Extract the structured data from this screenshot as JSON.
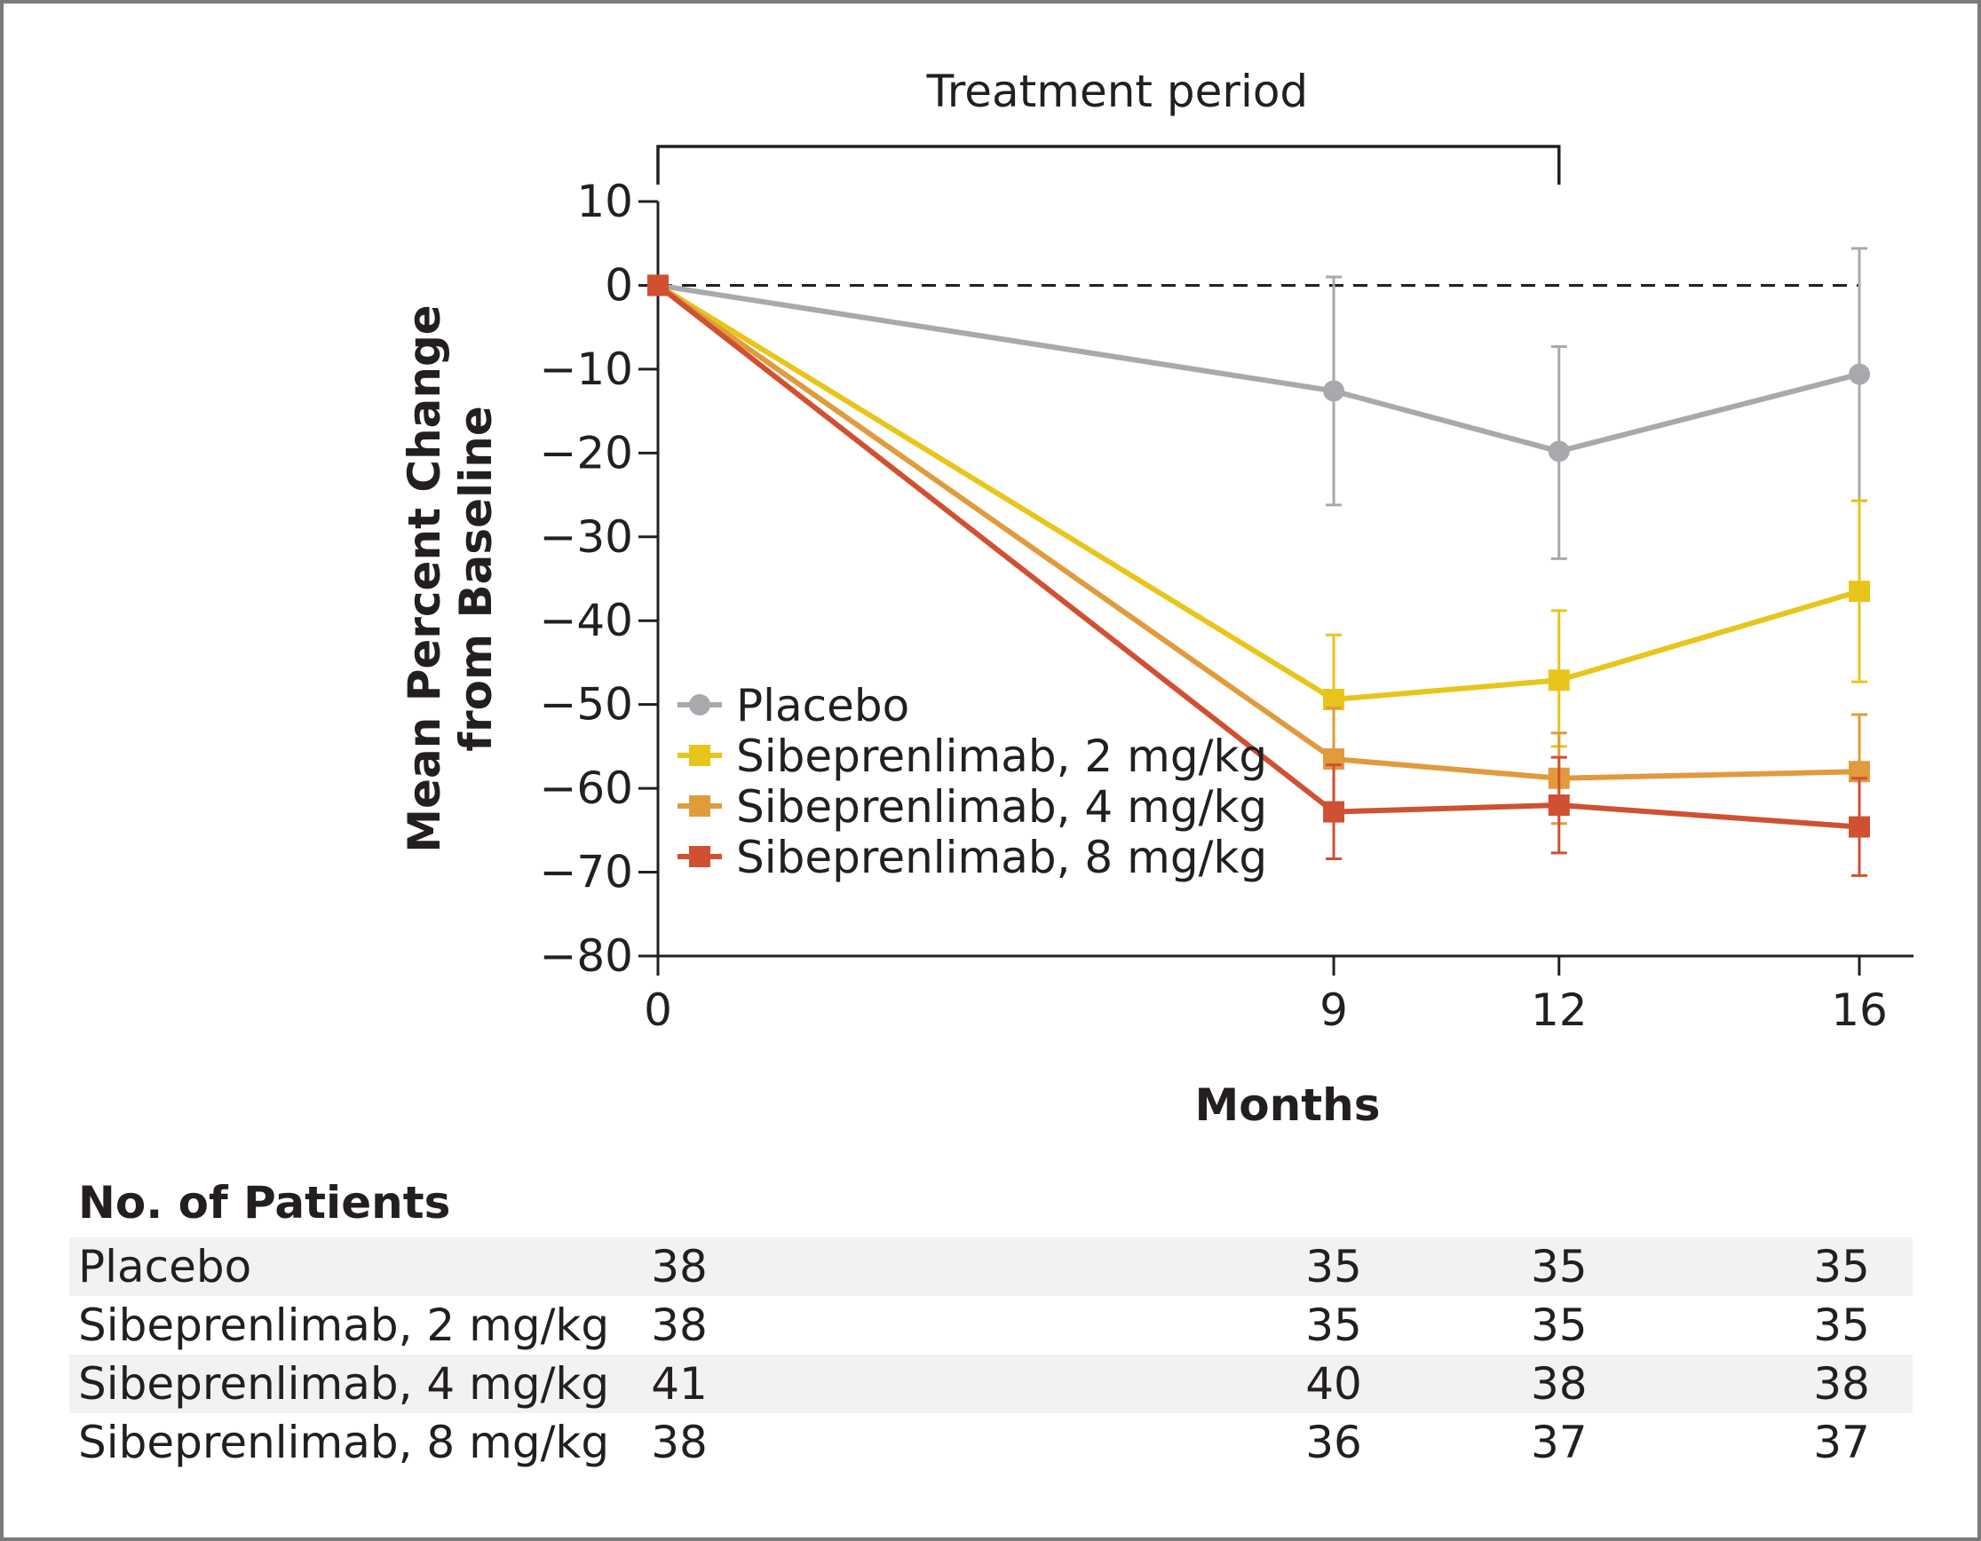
{
  "chart_data": {
    "type": "line",
    "xlabel": "Months",
    "ylabel_lines": [
      "Mean Percent Change",
      "from Baseline"
    ],
    "x": [
      0,
      9,
      12,
      16
    ],
    "x_tick_labels": [
      "0",
      "9",
      "12",
      "16"
    ],
    "ylim": [
      -80,
      10
    ],
    "y_ticks": [
      10,
      0,
      -10,
      -20,
      -30,
      -40,
      -50,
      -60,
      -70,
      -80
    ],
    "y_tick_labels": [
      "10",
      "0",
      "−10",
      "−20",
      "−30",
      "−40",
      "−50",
      "−60",
      "−70",
      "−80"
    ],
    "reference_line_y": 0,
    "bracket": {
      "label": "Treatment period",
      "from_x": 0,
      "to_x": 12
    },
    "legend_position": "lower-left",
    "series": [
      {
        "name": "Placebo",
        "color": "#a7a9ac",
        "marker": "circle",
        "values": [
          0,
          -12.6,
          -19.8,
          -10.6
        ],
        "err_low": [
          null,
          -26.2,
          -32.6,
          -25.7
        ],
        "err_high": [
          null,
          1.0,
          -7.3,
          4.4
        ]
      },
      {
        "name": "Sibeprenlimab, 2 mg/kg",
        "color": "#e8c51b",
        "marker": "square",
        "values": [
          0,
          -49.4,
          -47.1,
          -36.5
        ],
        "err_low": [
          null,
          -57.0,
          -55.0,
          -47.3
        ],
        "err_high": [
          null,
          -41.7,
          -38.8,
          -25.7
        ]
      },
      {
        "name": "Sibeprenlimab, 4 mg/kg",
        "color": "#e09b3d",
        "marker": "square",
        "values": [
          0,
          -56.5,
          -58.8,
          -58.0
        ],
        "err_low": [
          null,
          -62.6,
          -64.2,
          -64.8
        ],
        "err_high": [
          null,
          -50.4,
          -53.4,
          -51.2
        ]
      },
      {
        "name": "Sibeprenlimab, 8 mg/kg",
        "color": "#cf5132",
        "marker": "square",
        "values": [
          0,
          -62.8,
          -62.0,
          -64.6
        ],
        "err_low": [
          null,
          -68.4,
          -67.7,
          -70.4
        ],
        "err_high": [
          null,
          -57.2,
          -56.3,
          -58.8
        ]
      }
    ],
    "table": {
      "title": "No. of Patients",
      "rows": [
        {
          "label": "Placebo",
          "values": [
            "38",
            "35",
            "35",
            "35"
          ]
        },
        {
          "label": "Sibeprenlimab, 2 mg/kg",
          "values": [
            "38",
            "35",
            "35",
            "35"
          ]
        },
        {
          "label": "Sibeprenlimab, 4 mg/kg",
          "values": [
            "41",
            "40",
            "38",
            "38"
          ]
        },
        {
          "label": "Sibeprenlimab, 8 mg/kg",
          "values": [
            "38",
            "36",
            "37",
            "37"
          ]
        }
      ],
      "stripe_color": "#f2f2f2"
    }
  }
}
